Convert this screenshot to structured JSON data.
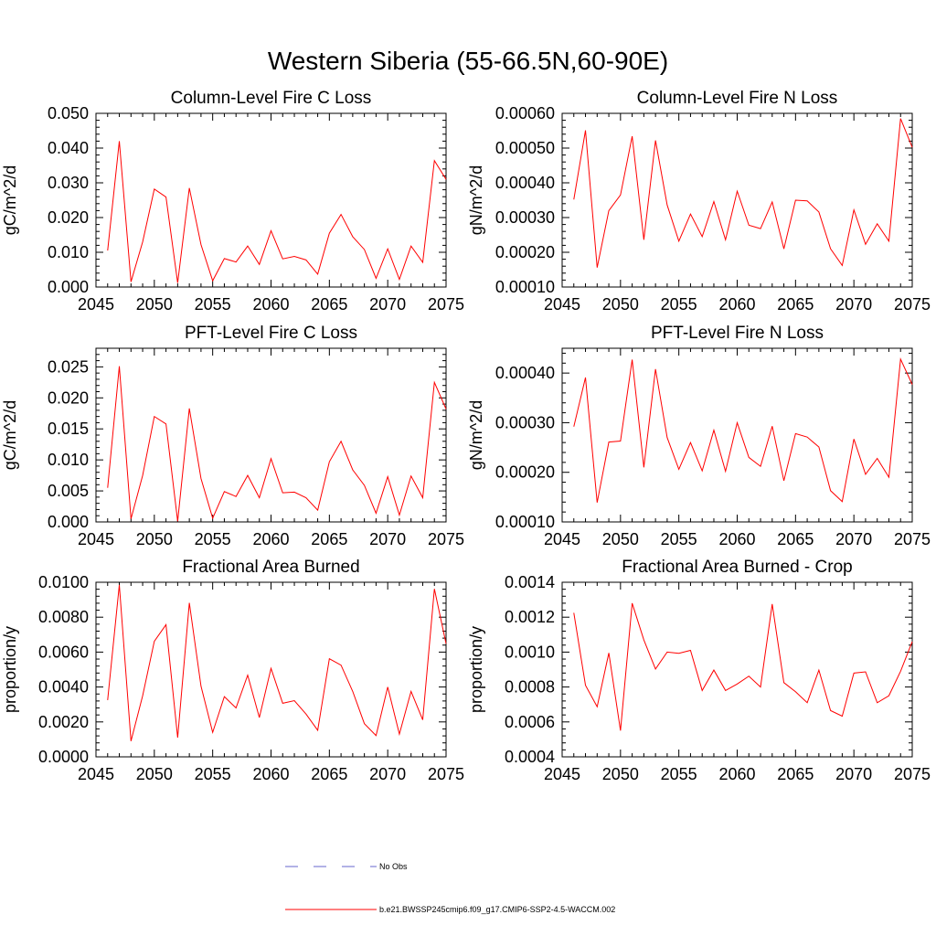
{
  "figure_title": "Western Siberia (55-66.5N,60-90E)",
  "legend": [
    {
      "label": "No Obs",
      "color": "#6666cc",
      "style": "dashed"
    },
    {
      "label": "b.e21.BWSSP245cmip6.f09_g17.CMIP6-SSP2-4.5-WACCM.002",
      "color": "#ff0000",
      "style": "solid"
    }
  ],
  "chart_data": [
    {
      "type": "line",
      "title": "Column-Level Fire C Loss",
      "xlabel": "",
      "ylabel": "gC/m^2/d",
      "xlim": [
        2045,
        2075
      ],
      "ylim": [
        0,
        0.05
      ],
      "xticks": [
        "2045",
        "2050",
        "2055",
        "2060",
        "2065",
        "2070",
        "2075"
      ],
      "yticks": [
        "0.000",
        "0.010",
        "0.020",
        "0.030",
        "0.040",
        "0.050"
      ],
      "x": [
        2046,
        2047,
        2048,
        2049,
        2050,
        2051,
        2052,
        2053,
        2054,
        2055,
        2056,
        2057,
        2058,
        2059,
        2060,
        2061,
        2062,
        2063,
        2064,
        2065,
        2066,
        2067,
        2068,
        2069,
        2070,
        2071,
        2072,
        2073,
        2074,
        2075
      ],
      "series": [
        {
          "color": "#ff0000",
          "values": [
            0.0105,
            0.042,
            0.0015,
            0.013,
            0.0282,
            0.0259,
            0.0012,
            0.0285,
            0.0122,
            0.0018,
            0.0082,
            0.0072,
            0.0118,
            0.0065,
            0.0162,
            0.0081,
            0.0088,
            0.0078,
            0.0037,
            0.0155,
            0.0209,
            0.0145,
            0.0108,
            0.0025,
            0.011,
            0.0022,
            0.0118,
            0.0071,
            0.0364,
            0.031
          ]
        }
      ]
    },
    {
      "type": "line",
      "title": "Column-Level Fire N Loss",
      "xlabel": "",
      "ylabel": "gN/m^2/d",
      "xlim": [
        2045,
        2075
      ],
      "ylim": [
        0.0001,
        0.0006
      ],
      "xticks": [
        "2045",
        "2050",
        "2055",
        "2060",
        "2065",
        "2070",
        "2075"
      ],
      "yticks": [
        "0.00010",
        "0.00020",
        "0.00030",
        "0.00040",
        "0.00050",
        "0.00060"
      ],
      "x": [
        2046,
        2047,
        2048,
        2049,
        2050,
        2051,
        2052,
        2053,
        2054,
        2055,
        2056,
        2057,
        2058,
        2059,
        2060,
        2061,
        2062,
        2063,
        2064,
        2065,
        2066,
        2067,
        2068,
        2069,
        2070,
        2071,
        2072,
        2073,
        2074,
        2075
      ],
      "series": [
        {
          "color": "#ff0000",
          "values": [
            0.000352,
            0.000551,
            0.000156,
            0.00032,
            0.000365,
            0.000534,
            0.000236,
            0.000522,
            0.000336,
            0.000232,
            0.00031,
            0.000245,
            0.000346,
            0.000236,
            0.000376,
            0.000278,
            0.000268,
            0.000345,
            0.00021,
            0.00035,
            0.000348,
            0.000316,
            0.00021,
            0.000162,
            0.000322,
            0.000223,
            0.000282,
            0.000232,
            0.000585,
            0.000502
          ]
        }
      ]
    },
    {
      "type": "line",
      "title": "PFT-Level Fire C Loss",
      "xlabel": "",
      "ylabel": "gC/m^2/d",
      "xlim": [
        2045,
        2075
      ],
      "ylim": [
        0,
        0.028
      ],
      "xticks": [
        "2045",
        "2050",
        "2055",
        "2060",
        "2065",
        "2070",
        "2075"
      ],
      "yticks": [
        "0.000",
        "0.005",
        "0.010",
        "0.015",
        "0.020",
        "0.025"
      ],
      "x": [
        2046,
        2047,
        2048,
        2049,
        2050,
        2051,
        2052,
        2053,
        2054,
        2055,
        2056,
        2057,
        2058,
        2059,
        2060,
        2061,
        2062,
        2063,
        2064,
        2065,
        2066,
        2067,
        2068,
        2069,
        2070,
        2071,
        2072,
        2073,
        2074,
        2075
      ],
      "series": [
        {
          "color": "#ff0000",
          "values": [
            0.0055,
            0.0251,
            0.0005,
            0.0075,
            0.017,
            0.0158,
            0.0001,
            0.0183,
            0.007,
            0.0006,
            0.0049,
            0.0041,
            0.0075,
            0.0039,
            0.0102,
            0.0047,
            0.0048,
            0.0039,
            0.0019,
            0.0097,
            0.013,
            0.0084,
            0.0059,
            0.0014,
            0.0073,
            0.0011,
            0.0074,
            0.0039,
            0.0225,
            0.0182
          ]
        }
      ]
    },
    {
      "type": "line",
      "title": "PFT-Level Fire N Loss",
      "xlabel": "",
      "ylabel": "gN/m^2/d",
      "xlim": [
        2045,
        2075
      ],
      "ylim": [
        0.0001,
        0.00045
      ],
      "xticks": [
        "2045",
        "2050",
        "2055",
        "2060",
        "2065",
        "2070",
        "2075"
      ],
      "yticks": [
        "0.00010",
        "0.00020",
        "0.00030",
        "0.00040"
      ],
      "x": [
        2046,
        2047,
        2048,
        2049,
        2050,
        2051,
        2052,
        2053,
        2054,
        2055,
        2056,
        2057,
        2058,
        2059,
        2060,
        2061,
        2062,
        2063,
        2064,
        2065,
        2066,
        2067,
        2068,
        2069,
        2070,
        2071,
        2072,
        2073,
        2074,
        2075
      ],
      "series": [
        {
          "color": "#ff0000",
          "values": [
            0.000292,
            0.000391,
            0.000139,
            0.000261,
            0.000263,
            0.000427,
            0.00021,
            0.000408,
            0.00027,
            0.000206,
            0.00026,
            0.000203,
            0.000285,
            0.000202,
            0.0003,
            0.00023,
            0.000212,
            0.000293,
            0.000183,
            0.000278,
            0.000271,
            0.000251,
            0.000163,
            0.000141,
            0.000267,
            0.000196,
            0.000228,
            0.00019,
            0.000428,
            0.000377
          ]
        }
      ]
    },
    {
      "type": "line",
      "title": "Fractional Area Burned",
      "xlabel": "",
      "ylabel": "proportion/y",
      "xlim": [
        2045,
        2075
      ],
      "ylim": [
        0,
        0.01
      ],
      "xticks": [
        "2045",
        "2050",
        "2055",
        "2060",
        "2065",
        "2070",
        "2075"
      ],
      "yticks": [
        "0.0000",
        "0.0020",
        "0.0040",
        "0.0060",
        "0.0080",
        "0.0100"
      ],
      "x": [
        2046,
        2047,
        2048,
        2049,
        2050,
        2051,
        2052,
        2053,
        2054,
        2055,
        2056,
        2057,
        2058,
        2059,
        2060,
        2061,
        2062,
        2063,
        2064,
        2065,
        2066,
        2067,
        2068,
        2069,
        2070,
        2071,
        2072,
        2073,
        2074,
        2075
      ],
      "series": [
        {
          "color": "#ff0000",
          "values": [
            0.00325,
            0.00985,
            0.0009,
            0.0035,
            0.00662,
            0.00757,
            0.0011,
            0.00882,
            0.00405,
            0.0014,
            0.00345,
            0.0028,
            0.00468,
            0.00225,
            0.00507,
            0.00307,
            0.00322,
            0.00245,
            0.00152,
            0.00562,
            0.00525,
            0.00375,
            0.0019,
            0.00122,
            0.004,
            0.0013,
            0.00375,
            0.00212,
            0.00962,
            0.00648
          ]
        }
      ]
    },
    {
      "type": "line",
      "title": "Fractional Area Burned - Crop",
      "xlabel": "",
      "ylabel": "proportion/y",
      "xlim": [
        2045,
        2075
      ],
      "ylim": [
        0.0004,
        0.0014
      ],
      "xticks": [
        "2045",
        "2050",
        "2055",
        "2060",
        "2065",
        "2070",
        "2075"
      ],
      "yticks": [
        "0.0004",
        "0.0006",
        "0.0008",
        "0.0010",
        "0.0012",
        "0.0014"
      ],
      "x": [
        2046,
        2047,
        2048,
        2049,
        2050,
        2051,
        2052,
        2053,
        2054,
        2055,
        2056,
        2057,
        2058,
        2059,
        2060,
        2061,
        2062,
        2063,
        2064,
        2065,
        2066,
        2067,
        2068,
        2069,
        2070,
        2071,
        2072,
        2073,
        2074,
        2075
      ],
      "series": [
        {
          "color": "#ff0000",
          "values": [
            0.001225,
            0.00081,
            0.000687,
            0.000995,
            0.00055,
            0.00128,
            0.00107,
            0.000903,
            0.001,
            0.000993,
            0.00101,
            0.00078,
            0.000897,
            0.00078,
            0.000817,
            0.000862,
            0.0008,
            0.001275,
            0.000825,
            0.000773,
            0.00071,
            0.000897,
            0.000665,
            0.000633,
            0.00088,
            0.000887,
            0.00071,
            0.00075,
            0.00089,
            0.00106
          ]
        }
      ]
    }
  ]
}
